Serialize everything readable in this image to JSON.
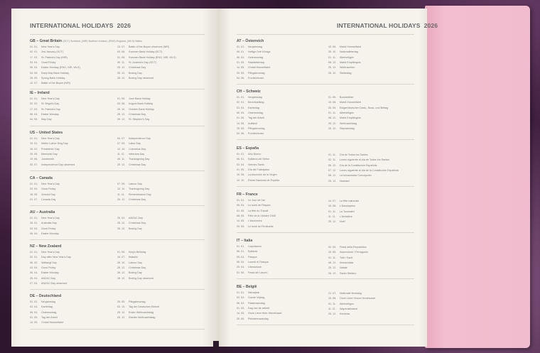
{
  "title": "INTERNATIONAL HOLIDAYS",
  "year": "2026",
  "colors": {
    "page": "#f5f2ec",
    "flap": "#f1bccd",
    "cover": "#3b1d3a"
  },
  "left_page": [
    {
      "code": "GB",
      "name": "Great Britain",
      "note": "(SCT) Scotland, (NIR) Northern Ireland, (ENG) England, (WLS) Wales",
      "col1": [
        [
          "01. 01.",
          "New Year's Day"
        ],
        [
          "02. 01.",
          "2nd January (SCT)"
        ],
        [
          "17. 03.",
          "St. Patrick's Day (NIR)"
        ],
        [
          "03. 04.",
          "Good Friday"
        ],
        [
          "06. 04.",
          "Easter Monday (ENG, NIR, WLS)"
        ],
        [
          "04. 05.",
          "Early May Bank Holiday"
        ],
        [
          "25. 05.",
          "Spring Bank Holiday"
        ],
        [
          "12. 07.",
          "Battle of the Boyne (NIR)"
        ]
      ],
      "col2": [
        [
          "13. 07.",
          "Battle of the Boyne observed (NIR)"
        ],
        [
          "03. 08.",
          "Summer Bank Holiday (SCT)"
        ],
        [
          "31. 08.",
          "Summer Bank Holiday (ENG, NIR, WLS)"
        ],
        [
          "30. 11.",
          "St. Andrew's Day (SCT)"
        ],
        [
          "25. 12.",
          "Christmas Day"
        ],
        [
          "26. 12.",
          "Boxing Day"
        ],
        [
          "28. 12.",
          "Boxing Day observed"
        ]
      ]
    },
    {
      "code": "IE",
      "name": "Ireland",
      "col1": [
        [
          "01. 01.",
          "New Year's Day"
        ],
        [
          "02. 02.",
          "St. Brigid's Day"
        ],
        [
          "17. 03.",
          "St. Patrick's Day"
        ],
        [
          "06. 04.",
          "Easter Monday"
        ],
        [
          "04. 05.",
          "May Day"
        ]
      ],
      "col2": [
        [
          "01. 06.",
          "June Bank Holiday"
        ],
        [
          "03. 08.",
          "August Bank Holiday"
        ],
        [
          "26. 10.",
          "October Bank Holiday"
        ],
        [
          "25. 12.",
          "Christmas Day"
        ],
        [
          "26. 12.",
          "St. Stephen's Day"
        ]
      ]
    },
    {
      "code": "US",
      "name": "United States",
      "col1": [
        [
          "01. 01.",
          "New Year's Day"
        ],
        [
          "19. 01.",
          "Martin Luther King Day"
        ],
        [
          "16. 02.",
          "Presidents' Day"
        ],
        [
          "25. 05.",
          "Memorial Day"
        ],
        [
          "19. 06.",
          "Juneteenth"
        ],
        [
          "03. 07.",
          "Independence Day observed"
        ]
      ],
      "col2": [
        [
          "04. 07.",
          "Independence Day"
        ],
        [
          "07. 09.",
          "Labor Day"
        ],
        [
          "12. 10.",
          "Columbus Day"
        ],
        [
          "11. 11.",
          "Veterans Day"
        ],
        [
          "26. 11.",
          "Thanksgiving Day"
        ],
        [
          "25. 12.",
          "Christmas Day"
        ]
      ]
    },
    {
      "code": "CA",
      "name": "Canada",
      "col1": [
        [
          "01. 01.",
          "New Year's Day"
        ],
        [
          "03. 04.",
          "Good Friday"
        ],
        [
          "18. 05.",
          "Victoria Day"
        ],
        [
          "01. 07.",
          "Canada Day"
        ]
      ],
      "col2": [
        [
          "07. 09.",
          "Labour Day"
        ],
        [
          "12. 10.",
          "Thanksgiving Day"
        ],
        [
          "11. 11.",
          "Remembrance Day"
        ],
        [
          "25. 12.",
          "Christmas Day"
        ]
      ]
    },
    {
      "code": "AU",
      "name": "Australia",
      "col1": [
        [
          "01. 01.",
          "New Year's Day"
        ],
        [
          "26. 01.",
          "Australia Day"
        ],
        [
          "03. 04.",
          "Good Friday"
        ],
        [
          "06. 04.",
          "Easter Monday"
        ]
      ],
      "col2": [
        [
          "25. 04.",
          "ANZAC Day"
        ],
        [
          "25. 12.",
          "Christmas Day"
        ],
        [
          "26. 12.",
          "Boxing Day"
        ]
      ]
    },
    {
      "code": "NZ",
      "name": "New Zealand",
      "col1": [
        [
          "01. 01.",
          "New Year's Day"
        ],
        [
          "02. 01.",
          "Day after New Year's Day"
        ],
        [
          "06. 02.",
          "Waitangi Day"
        ],
        [
          "03. 04.",
          "Good Friday"
        ],
        [
          "06. 04.",
          "Easter Monday"
        ],
        [
          "25. 04.",
          "ANZAC Day"
        ],
        [
          "27. 04.",
          "ANZAC Day observed"
        ]
      ],
      "col2": [
        [
          "01. 06.",
          "King's Birthday"
        ],
        [
          "10. 07.",
          "Matariki"
        ],
        [
          "26. 10.",
          "Labour Day"
        ],
        [
          "25. 12.",
          "Christmas Day"
        ],
        [
          "26. 12.",
          "Boxing Day"
        ],
        [
          "28. 12.",
          "Boxing Day observed"
        ]
      ]
    },
    {
      "code": "DE",
      "name": "Deutschland",
      "col1": [
        [
          "01. 01.",
          "Neujahrstag"
        ],
        [
          "03. 04.",
          "Karfreitag"
        ],
        [
          "06. 04.",
          "Ostermontag"
        ],
        [
          "01. 05.",
          "Tag der Arbeit"
        ],
        [
          "14. 05.",
          "Christi Himmelfahrt"
        ]
      ],
      "col2": [
        [
          "25. 05.",
          "Pfingstmontag"
        ],
        [
          "03. 10.",
          "Tag der Deutschen Einheit"
        ],
        [
          "25. 12.",
          "Erster Weihnachtstag"
        ],
        [
          "26. 12.",
          "Zweiter Weihnachtstag"
        ]
      ]
    }
  ],
  "right_page": [
    {
      "code": "AT",
      "name": "Österreich",
      "col1": [
        [
          "01. 01.",
          "Neujahrstag"
        ],
        [
          "06. 01.",
          "Heilige Drei Könige"
        ],
        [
          "06. 04.",
          "Ostermontag"
        ],
        [
          "01. 05.",
          "Staatsfeiertag"
        ],
        [
          "14. 05.",
          "Christi Himmelfahrt"
        ],
        [
          "25. 05.",
          "Pfingstmontag"
        ],
        [
          "04. 06.",
          "Fronleichnam"
        ]
      ],
      "col2": [
        [
          "15. 08.",
          "Mariä Himmelfahrt"
        ],
        [
          "26. 10.",
          "Nationalfeiertag"
        ],
        [
          "01. 11.",
          "Allerheiligen"
        ],
        [
          "08. 12.",
          "Mariä Empfängnis"
        ],
        [
          "25. 12.",
          "Weihnachten"
        ],
        [
          "26. 12.",
          "Stefanitag"
        ]
      ]
    },
    {
      "code": "CH",
      "name": "Schweiz",
      "col1": [
        [
          "01. 01.",
          "Neujahrstag"
        ],
        [
          "02. 01.",
          "Berchtoldstag"
        ],
        [
          "03. 04.",
          "Karfreitag"
        ],
        [
          "06. 04.",
          "Ostermontag"
        ],
        [
          "01. 05.",
          "Tag der Arbeit"
        ],
        [
          "14. 05.",
          "Auffahrt"
        ],
        [
          "25. 05.",
          "Pfingstmontag"
        ],
        [
          "04. 06.",
          "Fronleichnam"
        ]
      ],
      "col2": [
        [
          "01. 08.",
          "Bundesfeier"
        ],
        [
          "15. 08.",
          "Mariä Himmelfahrt"
        ],
        [
          "20. 09.",
          "Eidgenössischer Dank-, Buss- und Bettag"
        ],
        [
          "01. 11.",
          "Allerheiligen"
        ],
        [
          "08. 12.",
          "Mariä Empfängnis"
        ],
        [
          "25. 12.",
          "Weihnachtstag"
        ],
        [
          "26. 12.",
          "Stephanstag"
        ]
      ]
    },
    {
      "code": "ES",
      "name": "España",
      "col1": [
        [
          "01. 01.",
          "Año Nuevo"
        ],
        [
          "06. 01.",
          "Epifanía del Señor"
        ],
        [
          "03. 04.",
          "Viernes Santo"
        ],
        [
          "01. 05.",
          "Día del Trabajador"
        ],
        [
          "15. 08.",
          "La Asunción de la Virgen"
        ],
        [
          "12. 10.",
          "Fiesta Nacional de España"
        ]
      ],
      "col2": [
        [
          "01. 11.",
          "Día de Todos los Santos"
        ],
        [
          "02. 11.",
          "Lunes siguiente al día de Todos los Santos"
        ],
        [
          "06. 12.",
          "Día de la Constitución Española"
        ],
        [
          "07. 12.",
          "Lunes siguiente al día de la Constitución Española"
        ],
        [
          "08. 12.",
          "La Inmaculada Concepción"
        ],
        [
          "25. 12.",
          "Navidad"
        ]
      ]
    },
    {
      "code": "FR",
      "name": "France",
      "col1": [
        [
          "01. 01.",
          "Le Jour de l'an"
        ],
        [
          "06. 04.",
          "Le lundi de Pâques"
        ],
        [
          "01. 05.",
          "La fête du Travail"
        ],
        [
          "08. 05.",
          "Fête de la Victoire 1945"
        ],
        [
          "14. 05.",
          "L'Ascension"
        ],
        [
          "25. 05.",
          "Le lundi de Pentecôte"
        ]
      ],
      "col2": [
        [
          "14. 07.",
          "La fête nationale"
        ],
        [
          "15. 08.",
          "L'Assomption"
        ],
        [
          "01. 11.",
          "La Toussaint"
        ],
        [
          "11. 11.",
          "L'Armistice"
        ],
        [
          "25. 12.",
          "Noël"
        ]
      ]
    },
    {
      "code": "IT",
      "name": "Italia",
      "col1": [
        [
          "01. 01.",
          "Capodanno"
        ],
        [
          "06. 01.",
          "Epifania"
        ],
        [
          "05. 04.",
          "Pasqua"
        ],
        [
          "06. 04.",
          "Lunedì di Pasqua"
        ],
        [
          "25. 04.",
          "Liberazione"
        ],
        [
          "01. 05.",
          "Festa del Lavoro"
        ]
      ],
      "col2": [
        [
          "02. 06.",
          "Festa della Repubblica"
        ],
        [
          "15. 08.",
          "Assunzione / Ferragosto"
        ],
        [
          "01. 11.",
          "Tutti i Santi"
        ],
        [
          "08. 12.",
          "Immacolata"
        ],
        [
          "25. 12.",
          "Natale"
        ],
        [
          "26. 12.",
          "Santo Stefano"
        ]
      ]
    },
    {
      "code": "BE",
      "name": "België",
      "col1": [
        [
          "01. 01.",
          "Nieuwjaar"
        ],
        [
          "03. 04.",
          "Goede Vrijdag"
        ],
        [
          "06. 04.",
          "Paasmaandag"
        ],
        [
          "01. 05.",
          "Dag van de arbeid"
        ],
        [
          "14. 05.",
          "Onze Lieve Heer Hemelvaart"
        ],
        [
          "25. 05.",
          "Pinkstermaandag"
        ]
      ],
      "col2": [
        [
          "21. 07.",
          "Nationale feestdag"
        ],
        [
          "15. 08.",
          "Onze Lieve Vrouw Hemelvaart"
        ],
        [
          "01. 11.",
          "Allerheiligen"
        ],
        [
          "11. 11.",
          "Wapenstilstand"
        ],
        [
          "25. 12.",
          "Kerstmis"
        ]
      ]
    }
  ]
}
